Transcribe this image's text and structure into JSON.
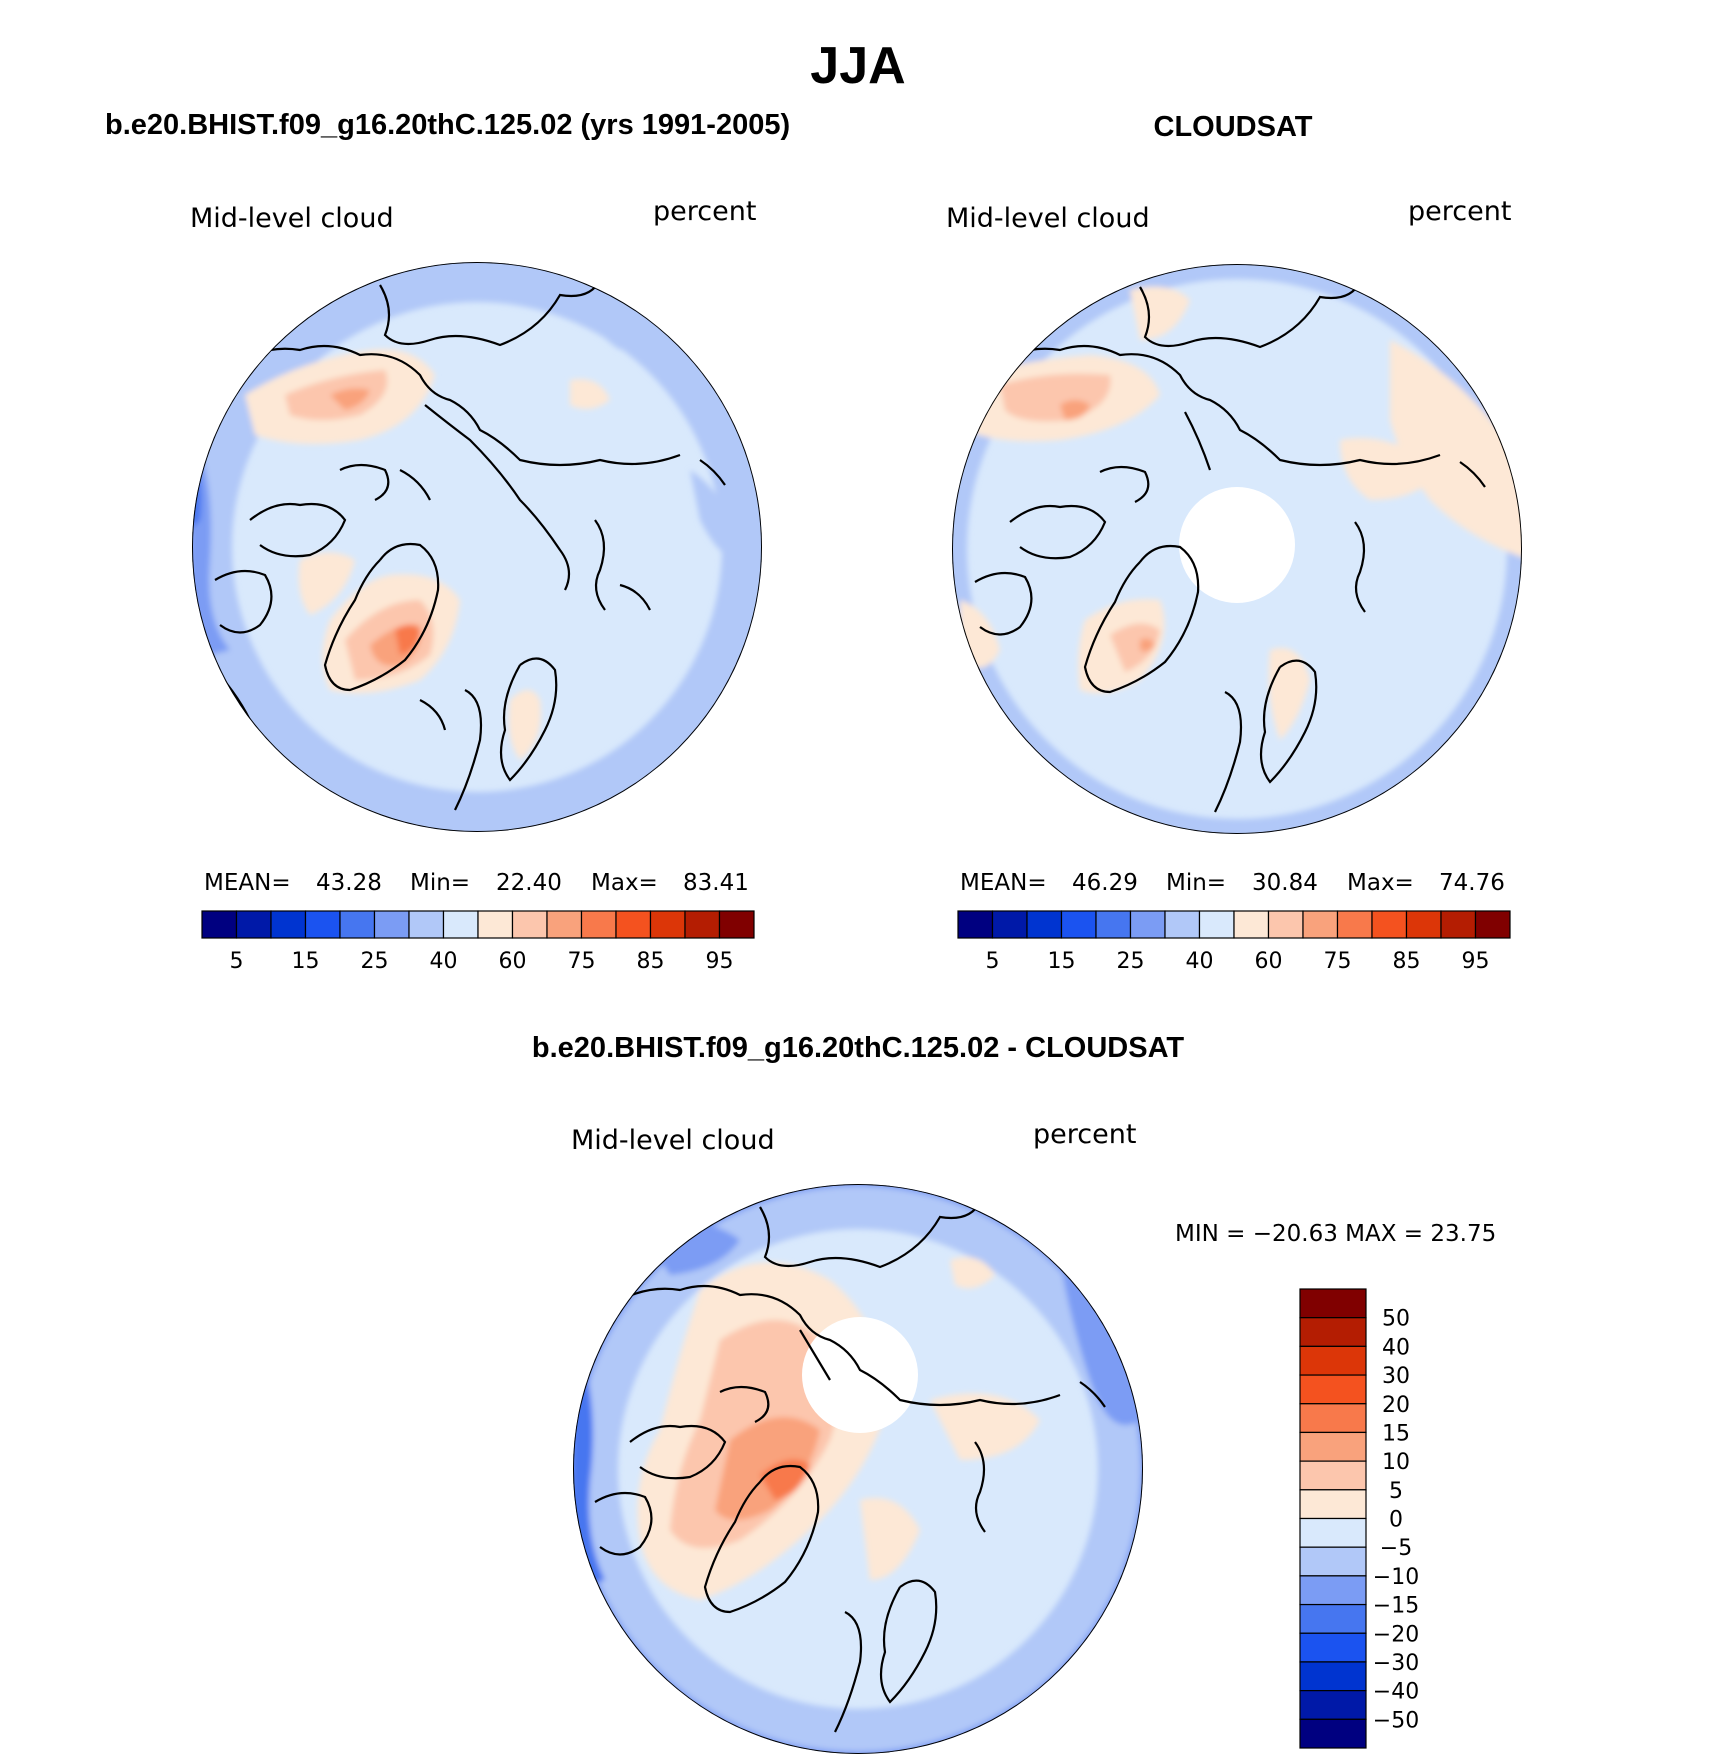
{
  "chart_data": [
    {
      "type": "heatmap",
      "projection": "north-polar-stereographic",
      "title": "b.e20.BHIST.f09_g16.20thC.125.02 (yrs 1991-2005)",
      "left_label": "Mid-level cloud",
      "right_label": "percent",
      "stats": {
        "mean_label": "MEAN=",
        "mean": "43.28",
        "min_label": "Min=",
        "min": "22.40",
        "max_label": "Max=",
        "max": "83.41"
      },
      "colorbar": {
        "orientation": "horizontal",
        "levels": [
          "5",
          "15",
          "25",
          "40",
          "60",
          "75",
          "85",
          "95"
        ],
        "colors": [
          "#000080",
          "#0019a8",
          "#0034d0",
          "#1b53f0",
          "#4676f0",
          "#7b9cf4",
          "#b1c8f8",
          "#d9e9fc",
          "#fde8d6",
          "#fcc6ad",
          "#f9a27c",
          "#f8794b",
          "#f4521f",
          "#dc3608",
          "#b41d02",
          "#800000"
        ]
      }
    },
    {
      "type": "heatmap",
      "projection": "north-polar-stereographic",
      "title": "CLOUDSAT",
      "left_label": "Mid-level cloud",
      "right_label": "percent",
      "stats": {
        "mean_label": "MEAN=",
        "mean": "46.29",
        "min_label": "Min=",
        "min": "30.84",
        "max_label": "Max=",
        "max": "74.76"
      },
      "colorbar": {
        "orientation": "horizontal",
        "levels": [
          "5",
          "15",
          "25",
          "40",
          "60",
          "75",
          "85",
          "95"
        ],
        "colors": [
          "#000080",
          "#0019a8",
          "#0034d0",
          "#1b53f0",
          "#4676f0",
          "#7b9cf4",
          "#b1c8f8",
          "#d9e9fc",
          "#fde8d6",
          "#fcc6ad",
          "#f9a27c",
          "#f8794b",
          "#f4521f",
          "#dc3608",
          "#b41d02",
          "#800000"
        ]
      }
    },
    {
      "type": "heatmap",
      "projection": "north-polar-stereographic",
      "title": "b.e20.BHIST.f09_g16.20thC.125.02 - CLOUDSAT",
      "left_label": "Mid-level cloud",
      "right_label": "percent",
      "stats_text": "MIN = −20.63 MAX =  23.75",
      "colorbar": {
        "orientation": "vertical",
        "levels": [
          "50",
          "40",
          "30",
          "20",
          "15",
          "10",
          "5",
          "0",
          "−5",
          "−10",
          "−15",
          "−20",
          "−30",
          "−40",
          "−50"
        ],
        "colors": [
          "#800000",
          "#b41d02",
          "#dc3608",
          "#f4521f",
          "#f8794b",
          "#f9a27c",
          "#fcc6ad",
          "#fde8d6",
          "#d9e9fc",
          "#b1c8f8",
          "#7b9cf4",
          "#4676f0",
          "#1b53f0",
          "#0034d0",
          "#0019a8",
          "#000080"
        ]
      }
    }
  ],
  "figure": {
    "title": "JJA"
  }
}
